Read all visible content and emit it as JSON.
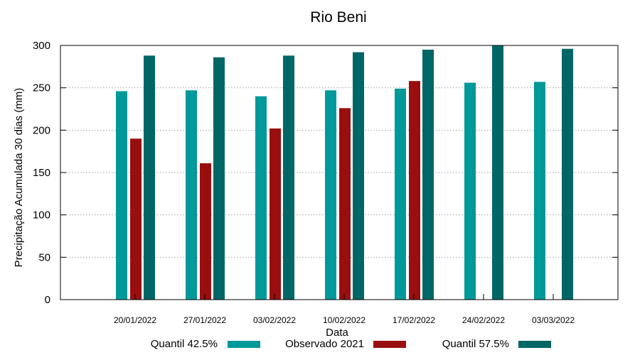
{
  "chart_data": {
    "type": "bar",
    "title": "Rio Beni",
    "xlabel": "Data",
    "ylabel": "Precipitação Acumulada 30 dias (mm)",
    "ylim": [
      0,
      300
    ],
    "yticks": [
      0,
      50,
      100,
      150,
      200,
      250,
      300
    ],
    "grid": true,
    "legend_position": "bottom",
    "categories": [
      "20/01/2022",
      "27/01/2022",
      "03/02/2022",
      "10/02/2022",
      "17/02/2022",
      "24/02/2022",
      "03/03/2022"
    ],
    "series": [
      {
        "name": "Quantil 42.5%",
        "color": "#009999",
        "values": [
          246,
          247,
          240,
          247,
          249,
          256,
          257
        ]
      },
      {
        "name": "Observado 2021",
        "color": "#990f0f",
        "values": [
          190,
          161,
          202,
          226,
          258,
          null,
          null
        ]
      },
      {
        "name": "Quantil 57.5%",
        "color": "#006666",
        "values": [
          288,
          286,
          288,
          292,
          295,
          300,
          296
        ]
      }
    ]
  }
}
